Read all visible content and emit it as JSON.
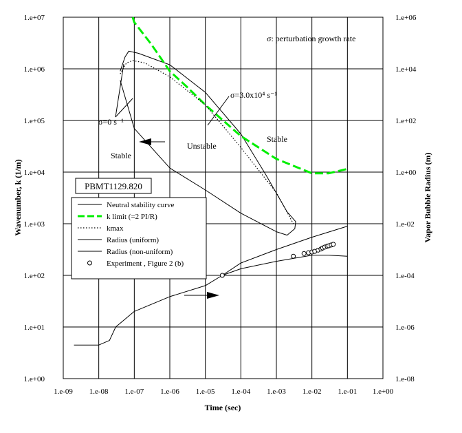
{
  "chart_data": {
    "type": "line",
    "title": "",
    "xlabel": "Time (sec)",
    "ylabel": "Wavenumber, k (1/m)",
    "y2label": "Vapor Bubble Radius (m)",
    "x_scale": "log",
    "y_scale": "log",
    "y2_scale": "log",
    "xlim": [
      1e-09,
      1
    ],
    "ylim": [
      1,
      10000000.0
    ],
    "y2lim": [
      1e-08,
      1000000.0
    ],
    "grid": true,
    "x_ticks": [
      "1.e-09",
      "1.e-08",
      "1.e-07",
      "1.e-06",
      "1.e-05",
      "1.e-04",
      "1.e-03",
      "1.e-02",
      "1.e-01",
      "1.e+00"
    ],
    "y_ticks": [
      "1.e+00",
      "1.e+01",
      "1.e+02",
      "1.e+03",
      "1.e+04",
      "1.e+05",
      "1.e+06",
      "1.e+07"
    ],
    "y2_ticks": [
      "1.e-08",
      "1.e-06",
      "1.e-04",
      "1.e-02",
      "1.e+00",
      "1.e+02",
      "1.e+04",
      "1.e+06"
    ],
    "case_label": "PBMT1129.820",
    "legend_position": "center-left",
    "series": [
      {
        "name": "Neutral stability curve",
        "axis": "left",
        "color": "#000000",
        "style": "solid",
        "points": [
          [
            4e-08,
            900000.0
          ],
          [
            5.5e-08,
            1700000.0
          ],
          [
            7e-08,
            2200000.0
          ],
          [
            1.3e-07,
            2000000.0
          ],
          [
            1e-06,
            1200000.0
          ],
          [
            1e-05,
            350000.0
          ],
          [
            0.0001,
            55000.0
          ],
          [
            0.0005,
            9000.0
          ],
          [
            0.002,
            1700.0
          ],
          [
            0.0035,
            1100.0
          ],
          [
            0.0033,
            800.0
          ],
          [
            0.002,
            600.0
          ],
          [
            0.001,
            700.0
          ],
          [
            0.0001,
            1600.0
          ],
          [
            1e-05,
            4500.0
          ],
          [
            1e-06,
            12000.0
          ],
          [
            1e-07,
            70000.0
          ],
          [
            4e-08,
            600000.0
          ]
        ]
      },
      {
        "name": "k limit (=2 PI/R)",
        "axis": "left",
        "color": "#00ee00",
        "style": "dashed",
        "points": [
          [
            9e-08,
            10000000.0
          ],
          [
            1e-07,
            8000000.0
          ],
          [
            3e-07,
            3000000.0
          ],
          [
            1e-06,
            900000.0
          ],
          [
            3e-06,
            450000.0
          ],
          [
            1e-05,
            200000.0
          ],
          [
            0.0001,
            50000.0
          ],
          [
            0.001,
            18000.0
          ],
          [
            0.01,
            9500.0
          ],
          [
            0.03,
            9500.0
          ],
          [
            0.1,
            11500.0
          ]
        ]
      },
      {
        "name": "kmax",
        "axis": "left",
        "color": "#000000",
        "style": "dotted",
        "points": [
          [
            4e-08,
            800000.0
          ],
          [
            6e-08,
            1300000.0
          ],
          [
            9e-08,
            1450000.0
          ],
          [
            2e-07,
            1300000.0
          ],
          [
            1e-06,
            700000.0
          ],
          [
            1e-05,
            200000.0
          ],
          [
            0.0001,
            30000.0
          ],
          [
            0.001,
            4000.0
          ],
          [
            0.003,
            1000.0
          ]
        ]
      },
      {
        "name": "Radius (uniform)",
        "axis": "right",
        "color": "#000000",
        "style": "solid",
        "points": [
          [
            2e-09,
            2e-07
          ],
          [
            1e-08,
            2e-07
          ],
          [
            2e-08,
            3e-07
          ],
          [
            3e-08,
            1e-06
          ],
          [
            1e-07,
            4e-06
          ],
          [
            1e-06,
            1.5e-05
          ],
          [
            1e-05,
            4e-05
          ],
          [
            3e-05,
            0.0001
          ],
          [
            0.0001,
            0.0003
          ],
          [
            0.001,
            0.001
          ],
          [
            0.01,
            0.003
          ],
          [
            0.1,
            0.008
          ]
        ]
      },
      {
        "name": "Radius (non-uniform)",
        "axis": "right",
        "color": "#000000",
        "style": "solid",
        "points": [
          [
            3e-05,
            0.0001
          ],
          [
            0.0001,
            0.00018
          ],
          [
            0.001,
            0.00035
          ],
          [
            0.01,
            0.0006
          ],
          [
            0.03,
            0.0006
          ],
          [
            0.1,
            0.00055
          ]
        ]
      },
      {
        "name": "Experiment , Figure 2 (b)",
        "axis": "right",
        "color": "#000000",
        "style": "markers",
        "points": [
          [
            3e-05,
            0.0001
          ],
          [
            0.003,
            0.00055
          ],
          [
            0.006,
            0.0007
          ],
          [
            0.008,
            0.00075
          ],
          [
            0.01,
            0.0008
          ],
          [
            0.012,
            0.00085
          ],
          [
            0.015,
            0.00095
          ],
          [
            0.018,
            0.00105
          ],
          [
            0.02,
            0.00115
          ],
          [
            0.023,
            0.00125
          ],
          [
            0.027,
            0.00135
          ],
          [
            0.03,
            0.0014
          ],
          [
            0.035,
            0.0015
          ],
          [
            0.04,
            0.0016
          ]
        ]
      }
    ],
    "annotations": {
      "sigma_note": "σ: perturbation growth rate",
      "sigma_label": "σ=3.0x10⁴ s⁻¹",
      "sigma_zero": "σ=0 s⁻¹",
      "stable_left": "Stable",
      "unstable": "Unstable",
      "stable_right": "Stable"
    }
  }
}
